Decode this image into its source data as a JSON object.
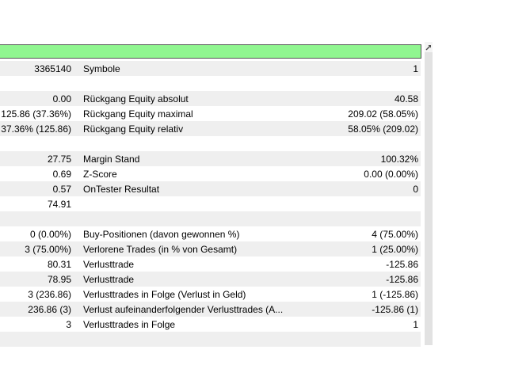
{
  "progress_bar": {
    "fill_color": "#90f690",
    "border_color": "#545454"
  },
  "scrollbar": {
    "arrow_icon": "diagonal-arrow",
    "track_color": "#e2e2e2"
  },
  "table": {
    "stripe_color": "#efefef",
    "text_color": "#000000",
    "rows": [
      {
        "left": "3365140",
        "label": "Symbole",
        "right": "1"
      },
      {
        "left": "",
        "label": "",
        "right": ""
      },
      {
        "left": "0.00",
        "label": "Rückgang Equity absolut",
        "right": "40.58"
      },
      {
        "left": "125.86 (37.36%)",
        "label": "Rückgang Equity maximal",
        "right": "209.02 (58.05%)"
      },
      {
        "left": "37.36% (125.86)",
        "label": "Rückgang Equity relativ",
        "right": "58.05% (209.02)"
      },
      {
        "left": "",
        "label": "",
        "right": ""
      },
      {
        "left": "27.75",
        "label": "Margin Stand",
        "right": "100.32%"
      },
      {
        "left": "0.69",
        "label": "Z-Score",
        "right": "0.00 (0.00%)"
      },
      {
        "left": "0.57",
        "label": "OnTester Resultat",
        "right": "0"
      },
      {
        "left": "74.91",
        "label": "",
        "right": ""
      },
      {
        "left": "",
        "label": "",
        "right": ""
      },
      {
        "left": "0 (0.00%)",
        "label": "Buy-Positionen (davon gewonnen %)",
        "right": "4 (75.00%)"
      },
      {
        "left": "3 (75.00%)",
        "label": "Verlorene Trades (in % von Gesamt)",
        "right": "1 (25.00%)"
      },
      {
        "left": "80.31",
        "label": "Verlusttrade",
        "right": "-125.86"
      },
      {
        "left": "78.95",
        "label": "Verlusttrade",
        "right": "-125.86"
      },
      {
        "left": "3 (236.86)",
        "label": "Verlusttrades in Folge (Verlust in Geld)",
        "right": "1 (-125.86)"
      },
      {
        "left": "236.86 (3)",
        "label": "Verlust aufeinanderfolgender Verlusttrades (A...",
        "right": "-125.86 (1)"
      },
      {
        "left": "3",
        "label": "Verlusttrades in Folge",
        "right": "1"
      },
      {
        "left": "",
        "label": "",
        "right": ""
      }
    ]
  }
}
